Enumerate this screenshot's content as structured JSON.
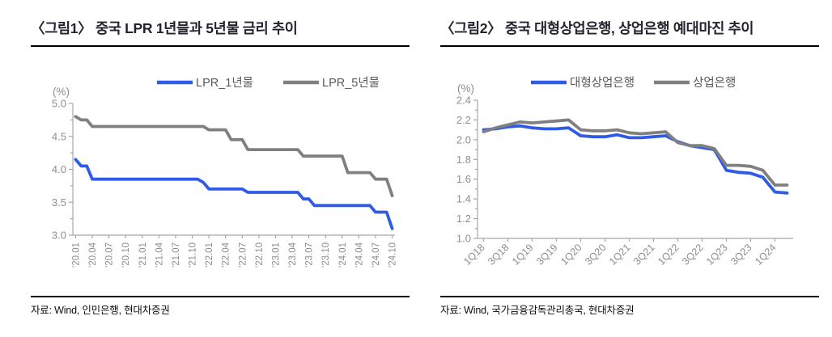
{
  "figures": [
    {
      "title": "〈그림1〉 중국 LPR 1년믈과 5년물 금리 추이",
      "source": "자료: Wind, 인민은행, 현대차증권"
    },
    {
      "title": "〈그림2〉 중국 대형상업은행, 상업은행 예대마진 추이",
      "source": "자료: Wind, 국가금융감독관리총국, 현대차증권"
    }
  ],
  "colors": {
    "series_blue": "#2F5BE7",
    "series_gray": "#808080",
    "axis_line": "#A6A6A6",
    "tick_label": "#8E8E8E",
    "legend_text": "#595959",
    "title_text": "#23232E",
    "rule_black": "#000000"
  },
  "chart_data": [
    {
      "type": "line",
      "axis_unit_label": "(%)",
      "ylim": [
        3.0,
        5.0
      ],
      "ytick_step": 0.5,
      "y_minor_step": 0.25,
      "grid": false,
      "legend_position": "top",
      "x_label_rotation": -90,
      "label_every": 3,
      "x_tick_labels": [
        "'20.01",
        "'20.04",
        "'20.07",
        "'20.10",
        "'21.01",
        "'21.04",
        "'21.07",
        "'21.10",
        "'22.01",
        "'22.04",
        "'22.07",
        "'22.10",
        "'23.01",
        "'23.04",
        "'23.07",
        "'23.10",
        "'24.01",
        "'24.04",
        "'24.07",
        "'24.10"
      ],
      "x": [
        "'20.01",
        "'20.02",
        "'20.03",
        "'20.04",
        "'20.05",
        "'20.06",
        "'20.07",
        "'20.08",
        "'20.09",
        "'20.10",
        "'20.11",
        "'20.12",
        "'21.01",
        "'21.02",
        "'21.03",
        "'21.04",
        "'21.05",
        "'21.06",
        "'21.07",
        "'21.08",
        "'21.09",
        "'21.10",
        "'21.11",
        "'21.12",
        "'22.01",
        "'22.02",
        "'22.03",
        "'22.04",
        "'22.05",
        "'22.06",
        "'22.07",
        "'22.08",
        "'22.09",
        "'22.10",
        "'22.11",
        "'22.12",
        "'23.01",
        "'23.02",
        "'23.03",
        "'23.04",
        "'23.05",
        "'23.06",
        "'23.07",
        "'23.08",
        "'23.09",
        "'23.10",
        "'23.11",
        "'23.12",
        "'24.01",
        "'24.02",
        "'24.03",
        "'24.04",
        "'24.05",
        "'24.06",
        "'24.07",
        "'24.08",
        "'24.09",
        "'24.10"
      ],
      "series": [
        {
          "name": "LPR_1년물",
          "color": "#2F5BE7",
          "values": [
            4.15,
            4.05,
            4.05,
            3.85,
            3.85,
            3.85,
            3.85,
            3.85,
            3.85,
            3.85,
            3.85,
            3.85,
            3.85,
            3.85,
            3.85,
            3.85,
            3.85,
            3.85,
            3.85,
            3.85,
            3.85,
            3.85,
            3.85,
            3.8,
            3.7,
            3.7,
            3.7,
            3.7,
            3.7,
            3.7,
            3.7,
            3.65,
            3.65,
            3.65,
            3.65,
            3.65,
            3.65,
            3.65,
            3.65,
            3.65,
            3.65,
            3.55,
            3.55,
            3.45,
            3.45,
            3.45,
            3.45,
            3.45,
            3.45,
            3.45,
            3.45,
            3.45,
            3.45,
            3.45,
            3.35,
            3.35,
            3.35,
            3.1
          ]
        },
        {
          "name": "LPR_5년물",
          "color": "#808080",
          "values": [
            4.8,
            4.75,
            4.75,
            4.65,
            4.65,
            4.65,
            4.65,
            4.65,
            4.65,
            4.65,
            4.65,
            4.65,
            4.65,
            4.65,
            4.65,
            4.65,
            4.65,
            4.65,
            4.65,
            4.65,
            4.65,
            4.65,
            4.65,
            4.65,
            4.6,
            4.6,
            4.6,
            4.6,
            4.45,
            4.45,
            4.45,
            4.3,
            4.3,
            4.3,
            4.3,
            4.3,
            4.3,
            4.3,
            4.3,
            4.3,
            4.3,
            4.2,
            4.2,
            4.2,
            4.2,
            4.2,
            4.2,
            4.2,
            4.2,
            3.95,
            3.95,
            3.95,
            3.95,
            3.95,
            3.85,
            3.85,
            3.85,
            3.6
          ]
        }
      ]
    },
    {
      "type": "line",
      "axis_unit_label": "(%)",
      "ylim": [
        1.0,
        2.4
      ],
      "ytick_step": 0.2,
      "y_minor_step": 0.1,
      "grid": false,
      "legend_position": "top",
      "x_label_rotation": -45,
      "label_every": 2,
      "x_tick_labels": [
        "1Q18",
        "3Q18",
        "1Q19",
        "3Q19",
        "1Q20",
        "3Q20",
        "1Q21",
        "3Q21",
        "1Q22",
        "3Q22",
        "1Q23",
        "3Q23",
        "1Q24"
      ],
      "x": [
        "1Q18",
        "2Q18",
        "3Q18",
        "4Q18",
        "1Q19",
        "2Q19",
        "3Q19",
        "4Q19",
        "1Q20",
        "2Q20",
        "3Q20",
        "4Q20",
        "1Q21",
        "2Q21",
        "3Q21",
        "4Q21",
        "1Q22",
        "2Q22",
        "3Q22",
        "4Q22",
        "1Q23",
        "2Q23",
        "3Q23",
        "4Q23",
        "1Q24",
        "2Q24"
      ],
      "series": [
        {
          "name": "대형상업은행",
          "color": "#2F5BE7",
          "values": [
            2.1,
            2.11,
            2.13,
            2.14,
            2.12,
            2.11,
            2.11,
            2.12,
            2.04,
            2.03,
            2.03,
            2.05,
            2.02,
            2.02,
            2.03,
            2.04,
            1.98,
            1.94,
            1.92,
            1.9,
            1.69,
            1.67,
            1.66,
            1.62,
            1.47,
            1.46
          ]
        },
        {
          "name": "상업은행",
          "color": "#808080",
          "values": [
            2.08,
            2.12,
            2.15,
            2.18,
            2.17,
            2.18,
            2.19,
            2.2,
            2.1,
            2.09,
            2.09,
            2.1,
            2.07,
            2.06,
            2.07,
            2.08,
            1.97,
            1.94,
            1.94,
            1.91,
            1.74,
            1.74,
            1.73,
            1.69,
            1.54,
            1.54
          ]
        }
      ]
    }
  ]
}
